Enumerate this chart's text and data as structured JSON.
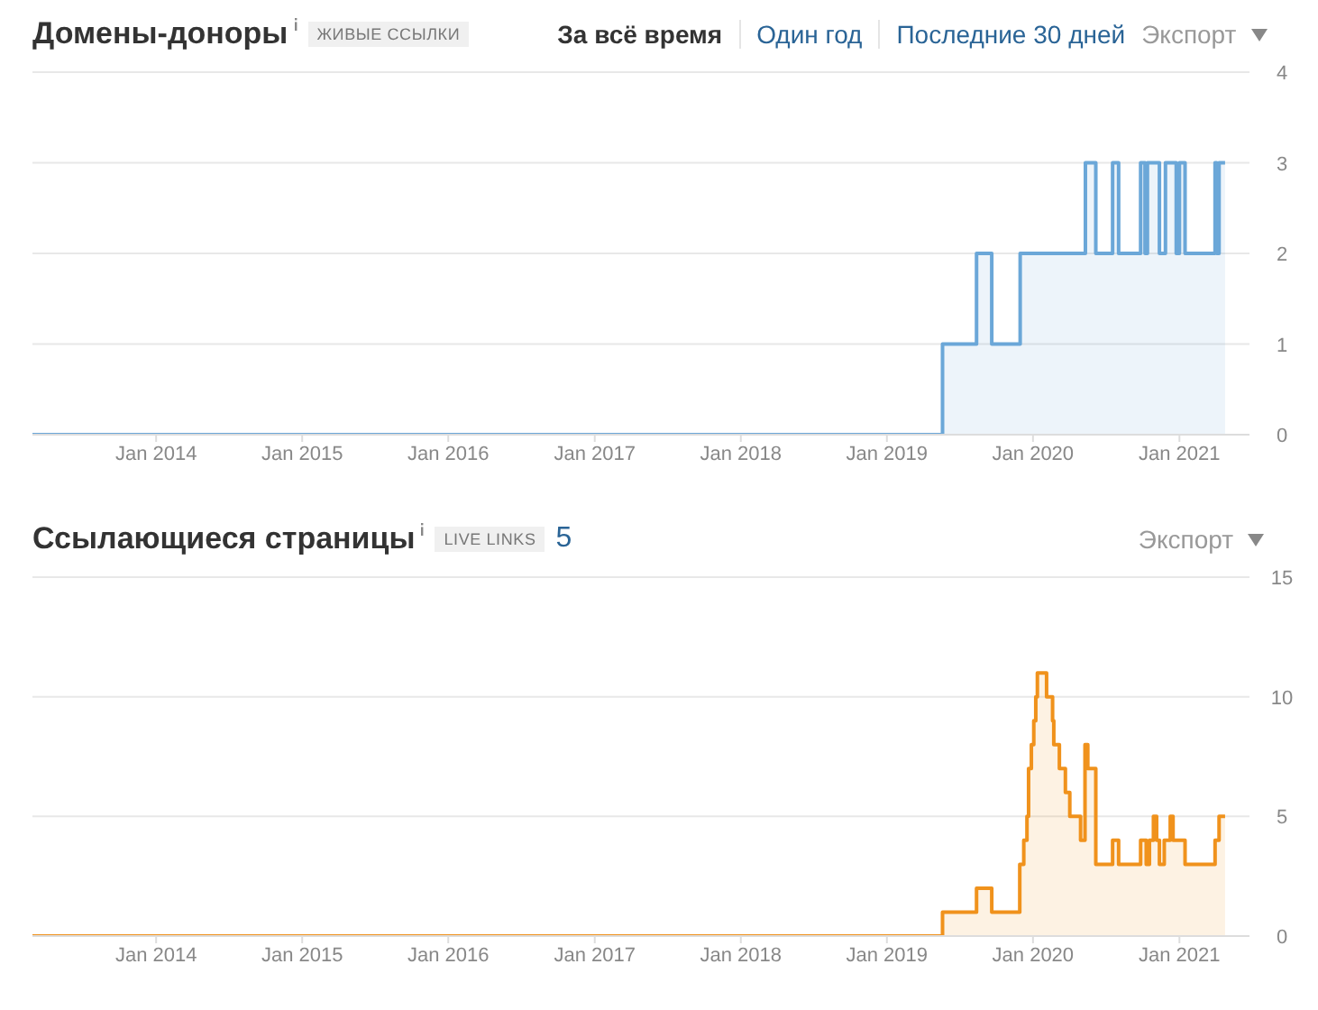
{
  "chart_data": [
    {
      "type": "step",
      "title": "Домены-доноры",
      "annotations": [
        "ЖИВЫЕ ССЫЛКИ",
        "За всё время",
        "Один год",
        "Последние 30 дней",
        "Экспорт"
      ],
      "x": [
        "2013-02-26",
        "2019-05-20",
        "2019-08-13",
        "2019-09-20",
        "2019-11-30",
        "2020-05-11",
        "2020-06-06",
        "2020-07-18",
        "2020-08-02",
        "2020-09-26",
        "2020-10-07",
        "2020-10-13",
        "2020-11-12",
        "2020-11-27",
        "2020-12-24",
        "2021-01-01",
        "2021-01-15",
        "2021-03-31",
        "2021-04-04",
        "2021-04-10",
        "2021-04-25"
      ],
      "series": [
        {
          "color": "#6ba7d8",
          "values": [
            0,
            1,
            2,
            1,
            2,
            3,
            2,
            3,
            2,
            3,
            2,
            3,
            2,
            3,
            2,
            3,
            2,
            3,
            2,
            3,
            3
          ]
        }
      ],
      "xlim": [
        "2013-02-26",
        "2021-06-25"
      ],
      "xticks": [
        {
          "value": "2014-01-01",
          "label": "Jan 2014"
        },
        {
          "value": "2015-01-01",
          "label": "Jan 2015"
        },
        {
          "value": "2016-01-01",
          "label": "Jan 2016"
        },
        {
          "value": "2017-01-01",
          "label": "Jan 2017"
        },
        {
          "value": "2018-01-01",
          "label": "Jan 2018"
        },
        {
          "value": "2019-01-01",
          "label": "Jan 2019"
        },
        {
          "value": "2020-01-01",
          "label": "Jan 2020"
        },
        {
          "value": "2021-01-01",
          "label": "Jan 2021"
        }
      ],
      "ylim": [
        0,
        4
      ],
      "yticks": [
        0,
        1,
        2,
        3,
        4
      ],
      "grid": "y",
      "legend": false
    },
    {
      "type": "step",
      "title": "Ссылающиеся страницы",
      "annotations": [
        "LIVE LINKS",
        "5",
        "Экспорт"
      ],
      "x": [
        "2013-02-26",
        "2019-05-20",
        "2019-08-13",
        "2019-09-20",
        "2019-11-29",
        "2019-12-09",
        "2019-12-17",
        "2019-12-21",
        "2019-12-28",
        "2020-01-03",
        "2020-01-08",
        "2020-01-12",
        "2020-02-04",
        "2020-02-19",
        "2020-02-22",
        "2020-03-07",
        "2020-03-22",
        "2020-04-02",
        "2020-04-29",
        "2020-05-10",
        "2020-05-17",
        "2020-06-06",
        "2020-07-18",
        "2020-08-02",
        "2020-09-26",
        "2020-10-10",
        "2020-10-18",
        "2020-10-28",
        "2020-11-05",
        "2020-11-12",
        "2020-11-24",
        "2020-12-09",
        "2020-12-16",
        "2021-01-15",
        "2021-03-31",
        "2021-04-10",
        "2021-04-25"
      ],
      "series": [
        {
          "color": "#f0921c",
          "values": [
            0,
            1,
            2,
            1,
            3,
            4,
            5,
            7,
            8,
            9,
            10,
            11,
            10,
            9,
            8,
            7,
            6,
            5,
            4,
            8,
            7,
            3,
            4,
            3,
            4,
            3,
            4,
            5,
            4,
            3,
            4,
            5,
            4,
            3,
            4,
            5,
            5
          ]
        }
      ],
      "xlim": [
        "2013-02-26",
        "2021-06-25"
      ],
      "xticks": [
        {
          "value": "2014-01-01",
          "label": "Jan 2014"
        },
        {
          "value": "2015-01-01",
          "label": "Jan 2015"
        },
        {
          "value": "2016-01-01",
          "label": "Jan 2016"
        },
        {
          "value": "2017-01-01",
          "label": "Jan 2017"
        },
        {
          "value": "2018-01-01",
          "label": "Jan 2018"
        },
        {
          "value": "2019-01-01",
          "label": "Jan 2019"
        },
        {
          "value": "2020-01-01",
          "label": "Jan 2020"
        },
        {
          "value": "2021-01-01",
          "label": "Jan 2021"
        }
      ],
      "ylim": [
        0,
        15
      ],
      "yticks": [
        0,
        5,
        10,
        15
      ],
      "grid": "y",
      "legend": false
    }
  ]
}
